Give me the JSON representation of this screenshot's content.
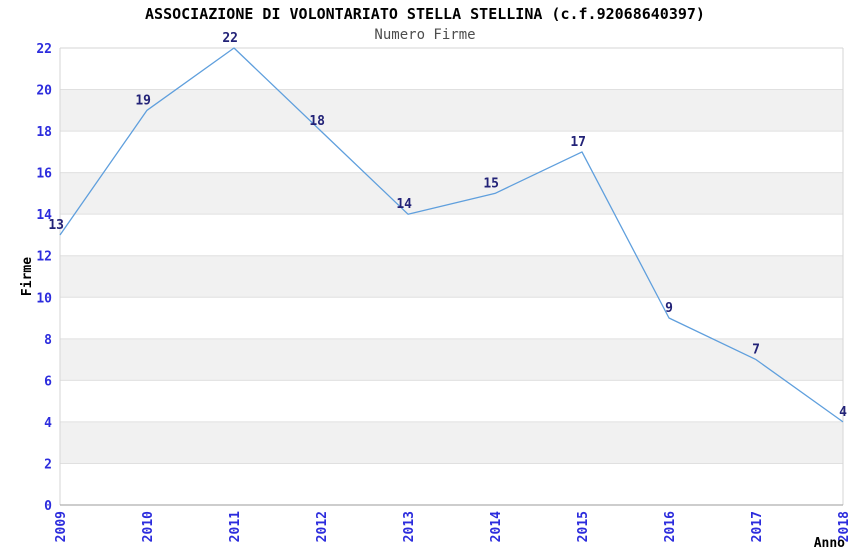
{
  "chart_data": {
    "type": "line",
    "title": "ASSOCIAZIONE DI VOLONTARIATO STELLA STELLINA (c.f.92068640397)",
    "subtitle": "Numero Firme",
    "xlabel": "Anno",
    "ylabel": "Firme",
    "categories": [
      "2009",
      "2010",
      "2011",
      "2012",
      "2013",
      "2014",
      "2015",
      "2016",
      "2017",
      "2018"
    ],
    "values": [
      13,
      19,
      22,
      18,
      14,
      15,
      17,
      9,
      7,
      4
    ],
    "ylim": [
      0,
      22
    ],
    "ytick_step": 2,
    "yticks": [
      0,
      2,
      4,
      6,
      8,
      10,
      12,
      14,
      16,
      18,
      20,
      22
    ],
    "grid": true,
    "band_fill_ranges": [
      [
        2,
        4
      ],
      [
        6,
        8
      ],
      [
        10,
        12
      ],
      [
        14,
        16
      ],
      [
        18,
        20
      ]
    ],
    "legend": "none",
    "x_tick_rotation": 90,
    "colors": {
      "line": "#5f9fdd",
      "point_label": "#222277",
      "tick_label": "#2c2cdd",
      "band_fill": "#f1f1f1",
      "gridline": "#e0e0e0",
      "plot_border": "#d6d6d6",
      "axis_line": "#9b9b9b",
      "title": "#000000",
      "subtitle": "#4d4d4d",
      "axis_title": "#000000"
    }
  }
}
